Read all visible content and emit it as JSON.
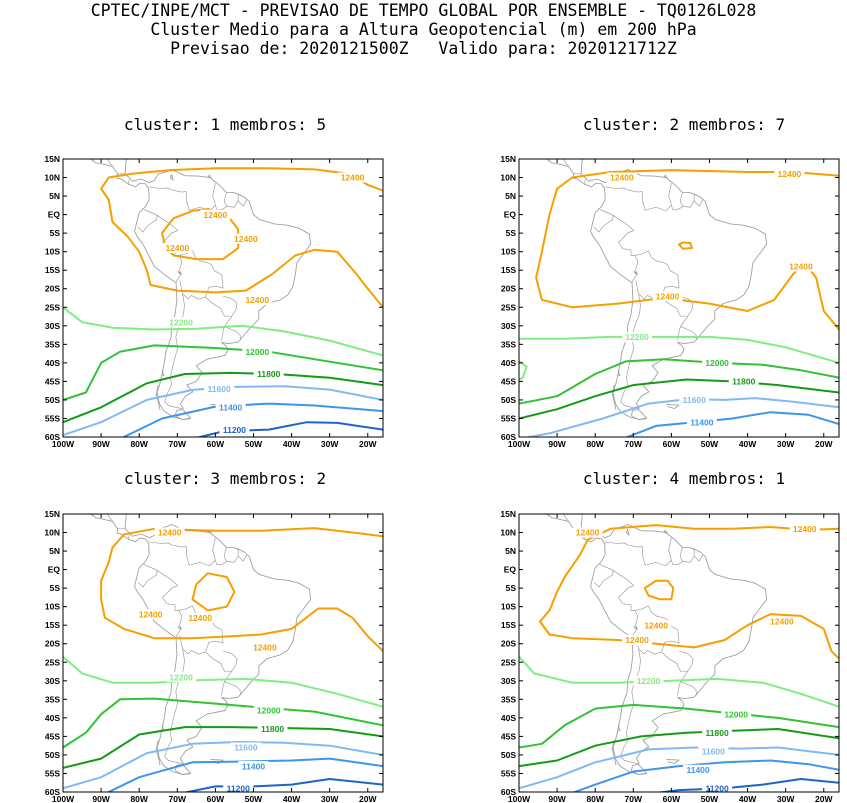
{
  "header": {
    "line1": "CPTEC/INPE/MCT - PREVISAO DE TEMPO GLOBAL POR ENSEMBLE - TQ0126L028",
    "line2": "Cluster Medio para a Altura Geopotencial (m) em 200 hPa",
    "line3": "Previsao de: 2020121500Z   Valido para: 2020121712Z"
  },
  "axes": {
    "lat_labels": [
      "15N",
      "10N",
      "5N",
      "EQ",
      "5S",
      "10S",
      "15S",
      "20S",
      "25S",
      "30S",
      "35S",
      "40S",
      "45S",
      "50S",
      "55S",
      "60S"
    ],
    "lon_labels": [
      "100W",
      "90W",
      "80W",
      "70W",
      "60W",
      "50W",
      "40W",
      "30W",
      "20W"
    ]
  },
  "colors": {
    "c12400": "#f5a000",
    "c12200": "#80ee80",
    "c12000": "#33c233",
    "c11800": "#159a15",
    "c11600": "#80baf5",
    "c11400": "#3c96ec",
    "c11200": "#1e64c8",
    "coast": "#a0a0a0"
  },
  "panels": [
    {
      "title": "cluster: 1   membros: 5",
      "labels": [
        {
          "text": "12400",
          "lon": -52,
          "lat": -6.5,
          "level": "c12400"
        },
        {
          "text": "12400",
          "lon": -24,
          "lat": 10,
          "level": "c12400"
        },
        {
          "text": "12400",
          "lon": -60,
          "lat": 0,
          "level": "c12400"
        },
        {
          "text": "12400",
          "lon": -70,
          "lat": -9,
          "level": "c12400"
        },
        {
          "text": "12400",
          "lon": -49,
          "lat": -23,
          "level": "c12400"
        },
        {
          "text": "12200",
          "lon": -69,
          "lat": -29,
          "level": "c12200"
        },
        {
          "text": "12000",
          "lon": -49,
          "lat": -37,
          "level": "c12000"
        },
        {
          "text": "11800",
          "lon": -46,
          "lat": -43,
          "level": "c11800"
        },
        {
          "text": "11600",
          "lon": -59,
          "lat": -47,
          "level": "c11600"
        },
        {
          "text": "11400",
          "lon": -56,
          "lat": -52,
          "level": "c11400"
        },
        {
          "text": "11200",
          "lon": -55,
          "lat": -58,
          "level": "c11200"
        }
      ]
    },
    {
      "title": "cluster: 2   membros: 7",
      "labels": [
        {
          "text": "12400",
          "lon": -73,
          "lat": 10,
          "level": "c12400"
        },
        {
          "text": "12400",
          "lon": -29,
          "lat": 11,
          "level": "c12400"
        },
        {
          "text": "12400",
          "lon": -26,
          "lat": -14,
          "level": "c12400"
        },
        {
          "text": "12400",
          "lon": -61,
          "lat": -22,
          "level": "c12400"
        },
        {
          "text": "12200",
          "lon": -69,
          "lat": -33,
          "level": "c12200"
        },
        {
          "text": "12000",
          "lon": -48,
          "lat": -40,
          "level": "c12000"
        },
        {
          "text": "11800",
          "lon": -41,
          "lat": -45,
          "level": "c11800"
        },
        {
          "text": "11600",
          "lon": -54,
          "lat": -50,
          "level": "c11600"
        },
        {
          "text": "11400",
          "lon": -52,
          "lat": -56,
          "level": "c11400"
        }
      ]
    },
    {
      "title": "cluster: 3   membros: 2",
      "labels": [
        {
          "text": "12400",
          "lon": -72,
          "lat": 10,
          "level": "c12400"
        },
        {
          "text": "12400",
          "lon": -77,
          "lat": -12,
          "level": "c12400"
        },
        {
          "text": "12400",
          "lon": -64,
          "lat": -13,
          "level": "c12400"
        },
        {
          "text": "12400",
          "lon": -47,
          "lat": -21,
          "level": "c12400"
        },
        {
          "text": "12200",
          "lon": -69,
          "lat": -29,
          "level": "c12200"
        },
        {
          "text": "12000",
          "lon": -46,
          "lat": -38,
          "level": "c12000"
        },
        {
          "text": "11800",
          "lon": -45,
          "lat": -43,
          "level": "c11800"
        },
        {
          "text": "11600",
          "lon": -52,
          "lat": -48,
          "level": "c11600"
        },
        {
          "text": "11400",
          "lon": -50,
          "lat": -53,
          "level": "c11400"
        },
        {
          "text": "11200",
          "lon": -54,
          "lat": -59,
          "level": "c11200"
        }
      ]
    },
    {
      "title": "cluster: 4   membros: 1",
      "labels": [
        {
          "text": "12400",
          "lon": -82,
          "lat": 10,
          "level": "c12400"
        },
        {
          "text": "12400",
          "lon": -25,
          "lat": 11,
          "level": "c12400"
        },
        {
          "text": "12400",
          "lon": -31,
          "lat": -14,
          "level": "c12400"
        },
        {
          "text": "12400",
          "lon": -64,
          "lat": -15,
          "level": "c12400"
        },
        {
          "text": "12400",
          "lon": -69,
          "lat": -19,
          "level": "c12400"
        },
        {
          "text": "12200",
          "lon": -66,
          "lat": -30,
          "level": "c12200"
        },
        {
          "text": "12000",
          "lon": -43,
          "lat": -39,
          "level": "c12000"
        },
        {
          "text": "11800",
          "lon": -48,
          "lat": -44,
          "level": "c11800"
        },
        {
          "text": "11600",
          "lon": -49,
          "lat": -49,
          "level": "c11600"
        },
        {
          "text": "11400",
          "lon": -53,
          "lat": -54,
          "level": "c11400"
        },
        {
          "text": "11200",
          "lon": -48,
          "lat": -59,
          "level": "c11200"
        }
      ]
    }
  ]
}
